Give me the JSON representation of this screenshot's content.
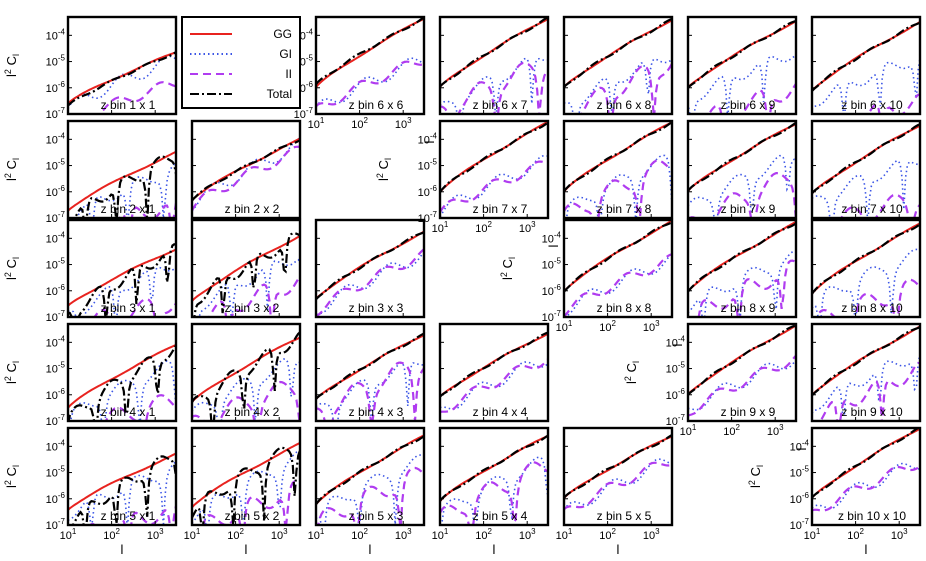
{
  "chart_data": {
    "type": "line",
    "layout": "upper-triangle grid of 10x10 tomographic bin pairs (rows 1-5 shown; rows 6-10 shifted)",
    "x_scale": "log",
    "y_scale": "log",
    "xlim": [
      10,
      3000
    ],
    "ylim": [
      1e-07,
      0.0005
    ],
    "x_ticks": [
      10,
      100,
      1000
    ],
    "x_tick_labels": [
      [
        "10",
        "1"
      ],
      [
        "10",
        "2"
      ],
      [
        "10",
        "3"
      ]
    ],
    "y_ticks": [
      1e-07,
      1e-06,
      1e-05,
      0.0001
    ],
    "y_tick_labels": [
      [
        "10",
        "-7"
      ],
      [
        "10",
        "-6"
      ],
      [
        "10",
        "-5"
      ],
      [
        "10",
        "-4"
      ]
    ],
    "xlabel": "l",
    "ylabel": {
      "base": "l",
      "sup": "2",
      "main": " C",
      "sub": "l"
    },
    "legend": {
      "placement": "top, between first and second panel columns",
      "entries": [
        {
          "name": "GG",
          "color": "#e8231f",
          "style": "solid"
        },
        {
          "name": "GI",
          "color": "#3b55e6",
          "style": "dotted"
        },
        {
          "name": "II",
          "color": "#b03cf0",
          "style": "dashed"
        },
        {
          "name": "Total",
          "color": "#000000",
          "style": "dashdot"
        }
      ]
    },
    "panels": [
      {
        "label": "z bin 1 x 1",
        "i": 1,
        "j": 1,
        "gg": [
          -6.6,
          -4.65
        ],
        "gi": [
          -6.8,
          -4.9
        ],
        "ii": [
          -7.4,
          -5.8
        ],
        "tot": [
          -6.7,
          -4.65
        ]
      },
      {
        "label": "z bin 6 x 6",
        "i": 6,
        "j": 6,
        "gg": [
          -6.0,
          -3.35
        ],
        "gi": [
          -6.9,
          -4.9
        ],
        "ii": [
          -6.9,
          -4.9
        ],
        "tot": [
          -5.9,
          -3.35
        ]
      },
      {
        "label": "z bin 6 x 7",
        "i": 6,
        "j": 7,
        "gg": [
          -6.0,
          -3.35
        ],
        "gi": [
          -6.9,
          -4.7
        ],
        "ii": [
          -7.0,
          -5.0
        ],
        "tot": [
          -6.0,
          -3.35
        ]
      },
      {
        "label": "z bin 6 x 8",
        "i": 6,
        "j": 8,
        "gg": [
          -6.0,
          -3.4
        ],
        "gi": [
          -6.8,
          -4.7
        ],
        "ii": [
          -7.2,
          -5.0
        ],
        "tot": [
          -6.0,
          -3.4
        ]
      },
      {
        "label": "z bin 6 x 9",
        "i": 6,
        "j": 9,
        "gg": [
          -6.0,
          -3.45
        ],
        "gi": [
          -6.5,
          -4.6
        ],
        "ii": [
          -7.5,
          -6.0
        ],
        "tot": [
          -6.0,
          -3.45
        ]
      },
      {
        "label": "z bin 6 x 10",
        "i": 6,
        "j": 10,
        "gg": [
          -6.1,
          -3.5
        ],
        "gi": [
          -6.6,
          -4.8
        ],
        "ii": [
          -7.6,
          -6.5
        ],
        "tot": [
          -6.1,
          -3.5
        ]
      },
      {
        "label": "z bin 2 x 1",
        "i": 2,
        "j": 1,
        "gg": [
          -6.7,
          -4.5
        ],
        "gi": [
          -7.0,
          -5.1
        ],
        "ii": [
          -7.5,
          -6.5
        ],
        "tot": [
          -7.1,
          -4.6
        ]
      },
      {
        "label": "z bin 2 x 2",
        "i": 2,
        "j": 2,
        "gg": [
          -6.3,
          -4.0
        ],
        "gi": [
          -6.5,
          -4.2
        ],
        "ii": [
          -6.6,
          -4.4
        ],
        "tot": [
          -6.3,
          -4.0
        ]
      },
      {
        "label": "z bin 7 x 7",
        "i": 7,
        "j": 7,
        "gg": [
          -6.0,
          -3.35
        ],
        "gi": [
          -6.8,
          -4.8
        ],
        "ii": [
          -6.8,
          -4.9
        ],
        "tot": [
          -6.0,
          -3.35
        ]
      },
      {
        "label": "z bin 7 x 8",
        "i": 7,
        "j": 8,
        "gg": [
          -6.0,
          -3.35
        ],
        "gi": [
          -6.8,
          -4.7
        ],
        "ii": [
          -7.0,
          -4.9
        ],
        "tot": [
          -6.0,
          -3.35
        ]
      },
      {
        "label": "z bin 7 x 9",
        "i": 7,
        "j": 9,
        "gg": [
          -6.0,
          -3.4
        ],
        "gi": [
          -6.7,
          -4.6
        ],
        "ii": [
          -7.4,
          -5.3
        ],
        "tot": [
          -6.0,
          -3.4
        ]
      },
      {
        "label": "z bin 7 x 10",
        "i": 7,
        "j": 10,
        "gg": [
          -6.1,
          -3.45
        ],
        "gi": [
          -6.5,
          -4.7
        ],
        "ii": [
          -7.5,
          -6.2
        ],
        "tot": [
          -6.1,
          -3.45
        ]
      },
      {
        "label": "z bin 3 x 1",
        "i": 3,
        "j": 1,
        "gg": [
          -6.6,
          -4.4
        ],
        "gi": [
          -7.0,
          -4.9
        ],
        "ii": [
          -7.5,
          -6.4
        ],
        "tot": [
          -7.0,
          -4.4
        ]
      },
      {
        "label": "z bin 3 x 2",
        "i": 3,
        "j": 2,
        "gg": [
          -6.4,
          -3.9
        ],
        "gi": [
          -6.8,
          -4.6
        ],
        "ii": [
          -7.3,
          -5.6
        ],
        "tot": [
          -6.5,
          -3.9
        ]
      },
      {
        "label": "z bin 3 x 3",
        "i": 3,
        "j": 3,
        "gg": [
          -6.3,
          -3.75
        ],
        "gi": [
          -6.8,
          -4.6
        ],
        "ii": [
          -6.8,
          -4.6
        ],
        "tot": [
          -6.3,
          -3.75
        ]
      },
      {
        "label": "z bin 8 x 8",
        "i": 8,
        "j": 8,
        "gg": [
          -6.0,
          -3.35
        ],
        "gi": [
          -6.8,
          -4.8
        ],
        "ii": [
          -6.8,
          -4.8
        ],
        "tot": [
          -6.0,
          -3.35
        ]
      },
      {
        "label": "z bin 8 x 9",
        "i": 8,
        "j": 9,
        "gg": [
          -6.0,
          -3.4
        ],
        "gi": [
          -6.6,
          -4.7
        ],
        "ii": [
          -7.1,
          -5.1
        ],
        "tot": [
          -6.0,
          -3.4
        ]
      },
      {
        "label": "z bin 8 x 10",
        "i": 8,
        "j": 10,
        "gg": [
          -6.1,
          -3.45
        ],
        "gi": [
          -6.5,
          -4.6
        ],
        "ii": [
          -7.3,
          -5.8
        ],
        "tot": [
          -6.1,
          -3.45
        ]
      },
      {
        "label": "z bin 4 x 1",
        "i": 4,
        "j": 1,
        "gg": [
          -6.5,
          -4.1
        ],
        "gi": [
          -6.9,
          -4.8
        ],
        "ii": [
          -7.5,
          -6.2
        ],
        "tot": [
          -7.0,
          -4.2
        ]
      },
      {
        "label": "z bin 4 x 2",
        "i": 4,
        "j": 2,
        "gg": [
          -6.3,
          -3.8
        ],
        "gi": [
          -6.8,
          -4.6
        ],
        "ii": [
          -7.2,
          -5.6
        ],
        "tot": [
          -6.5,
          -3.8
        ]
      },
      {
        "label": "z bin 4 x 3",
        "i": 4,
        "j": 3,
        "gg": [
          -6.2,
          -3.7
        ],
        "gi": [
          -6.7,
          -4.6
        ],
        "ii": [
          -6.8,
          -4.7
        ],
        "tot": [
          -6.2,
          -3.7
        ]
      },
      {
        "label": "z bin 4 x 4",
        "i": 4,
        "j": 4,
        "gg": [
          -6.1,
          -3.65
        ],
        "gi": [
          -6.7,
          -4.6
        ],
        "ii": [
          -6.7,
          -4.6
        ],
        "tot": [
          -6.1,
          -3.65
        ]
      },
      {
        "label": "z bin 9 x 9",
        "i": 9,
        "j": 9,
        "gg": [
          -6.0,
          -3.35
        ],
        "gi": [
          -6.6,
          -4.6
        ],
        "ii": [
          -6.7,
          -4.6
        ],
        "tot": [
          -6.0,
          -3.35
        ]
      },
      {
        "label": "z bin 9 x 10",
        "i": 9,
        "j": 10,
        "gg": [
          -6.0,
          -3.4
        ],
        "gi": [
          -6.5,
          -4.4
        ],
        "ii": [
          -7.0,
          -5.0
        ],
        "tot": [
          -6.0,
          -3.4
        ]
      },
      {
        "label": "z bin 5 x 1",
        "i": 5,
        "j": 1,
        "gg": [
          -6.4,
          -4.3
        ],
        "gi": [
          -6.6,
          -4.8
        ],
        "ii": [
          -7.5,
          -6.4
        ],
        "tot": [
          -7.0,
          -4.3
        ]
      },
      {
        "label": "z bin 5 x 2",
        "i": 5,
        "j": 2,
        "gg": [
          -6.3,
          -3.9
        ],
        "gi": [
          -6.7,
          -4.4
        ],
        "ii": [
          -7.3,
          -5.6
        ],
        "tot": [
          -6.5,
          -3.9
        ]
      },
      {
        "label": "z bin 5 x 3",
        "i": 5,
        "j": 3,
        "gg": [
          -6.2,
          -3.6
        ],
        "gi": [
          -6.6,
          -4.5
        ],
        "ii": [
          -7.0,
          -5.0
        ],
        "tot": [
          -6.2,
          -3.6
        ]
      },
      {
        "label": "z bin 5 x 4",
        "i": 5,
        "j": 4,
        "gg": [
          -6.1,
          -3.6
        ],
        "gi": [
          -6.6,
          -4.5
        ],
        "ii": [
          -6.8,
          -4.7
        ],
        "tot": [
          -6.1,
          -3.6
        ]
      },
      {
        "label": "z bin 5 x 5",
        "i": 5,
        "j": 5,
        "gg": [
          -6.0,
          -3.6
        ],
        "gi": [
          -6.6,
          -4.5
        ],
        "ii": [
          -6.6,
          -4.5
        ],
        "tot": [
          -6.0,
          -3.6
        ]
      },
      {
        "label": "z bin 10 x 10",
        "i": 10,
        "j": 10,
        "gg": [
          -6.0,
          -3.3
        ],
        "gi": [
          -6.6,
          -4.6
        ],
        "ii": [
          -6.6,
          -4.6
        ],
        "tot": [
          -6.0,
          -3.3
        ]
      }
    ]
  }
}
